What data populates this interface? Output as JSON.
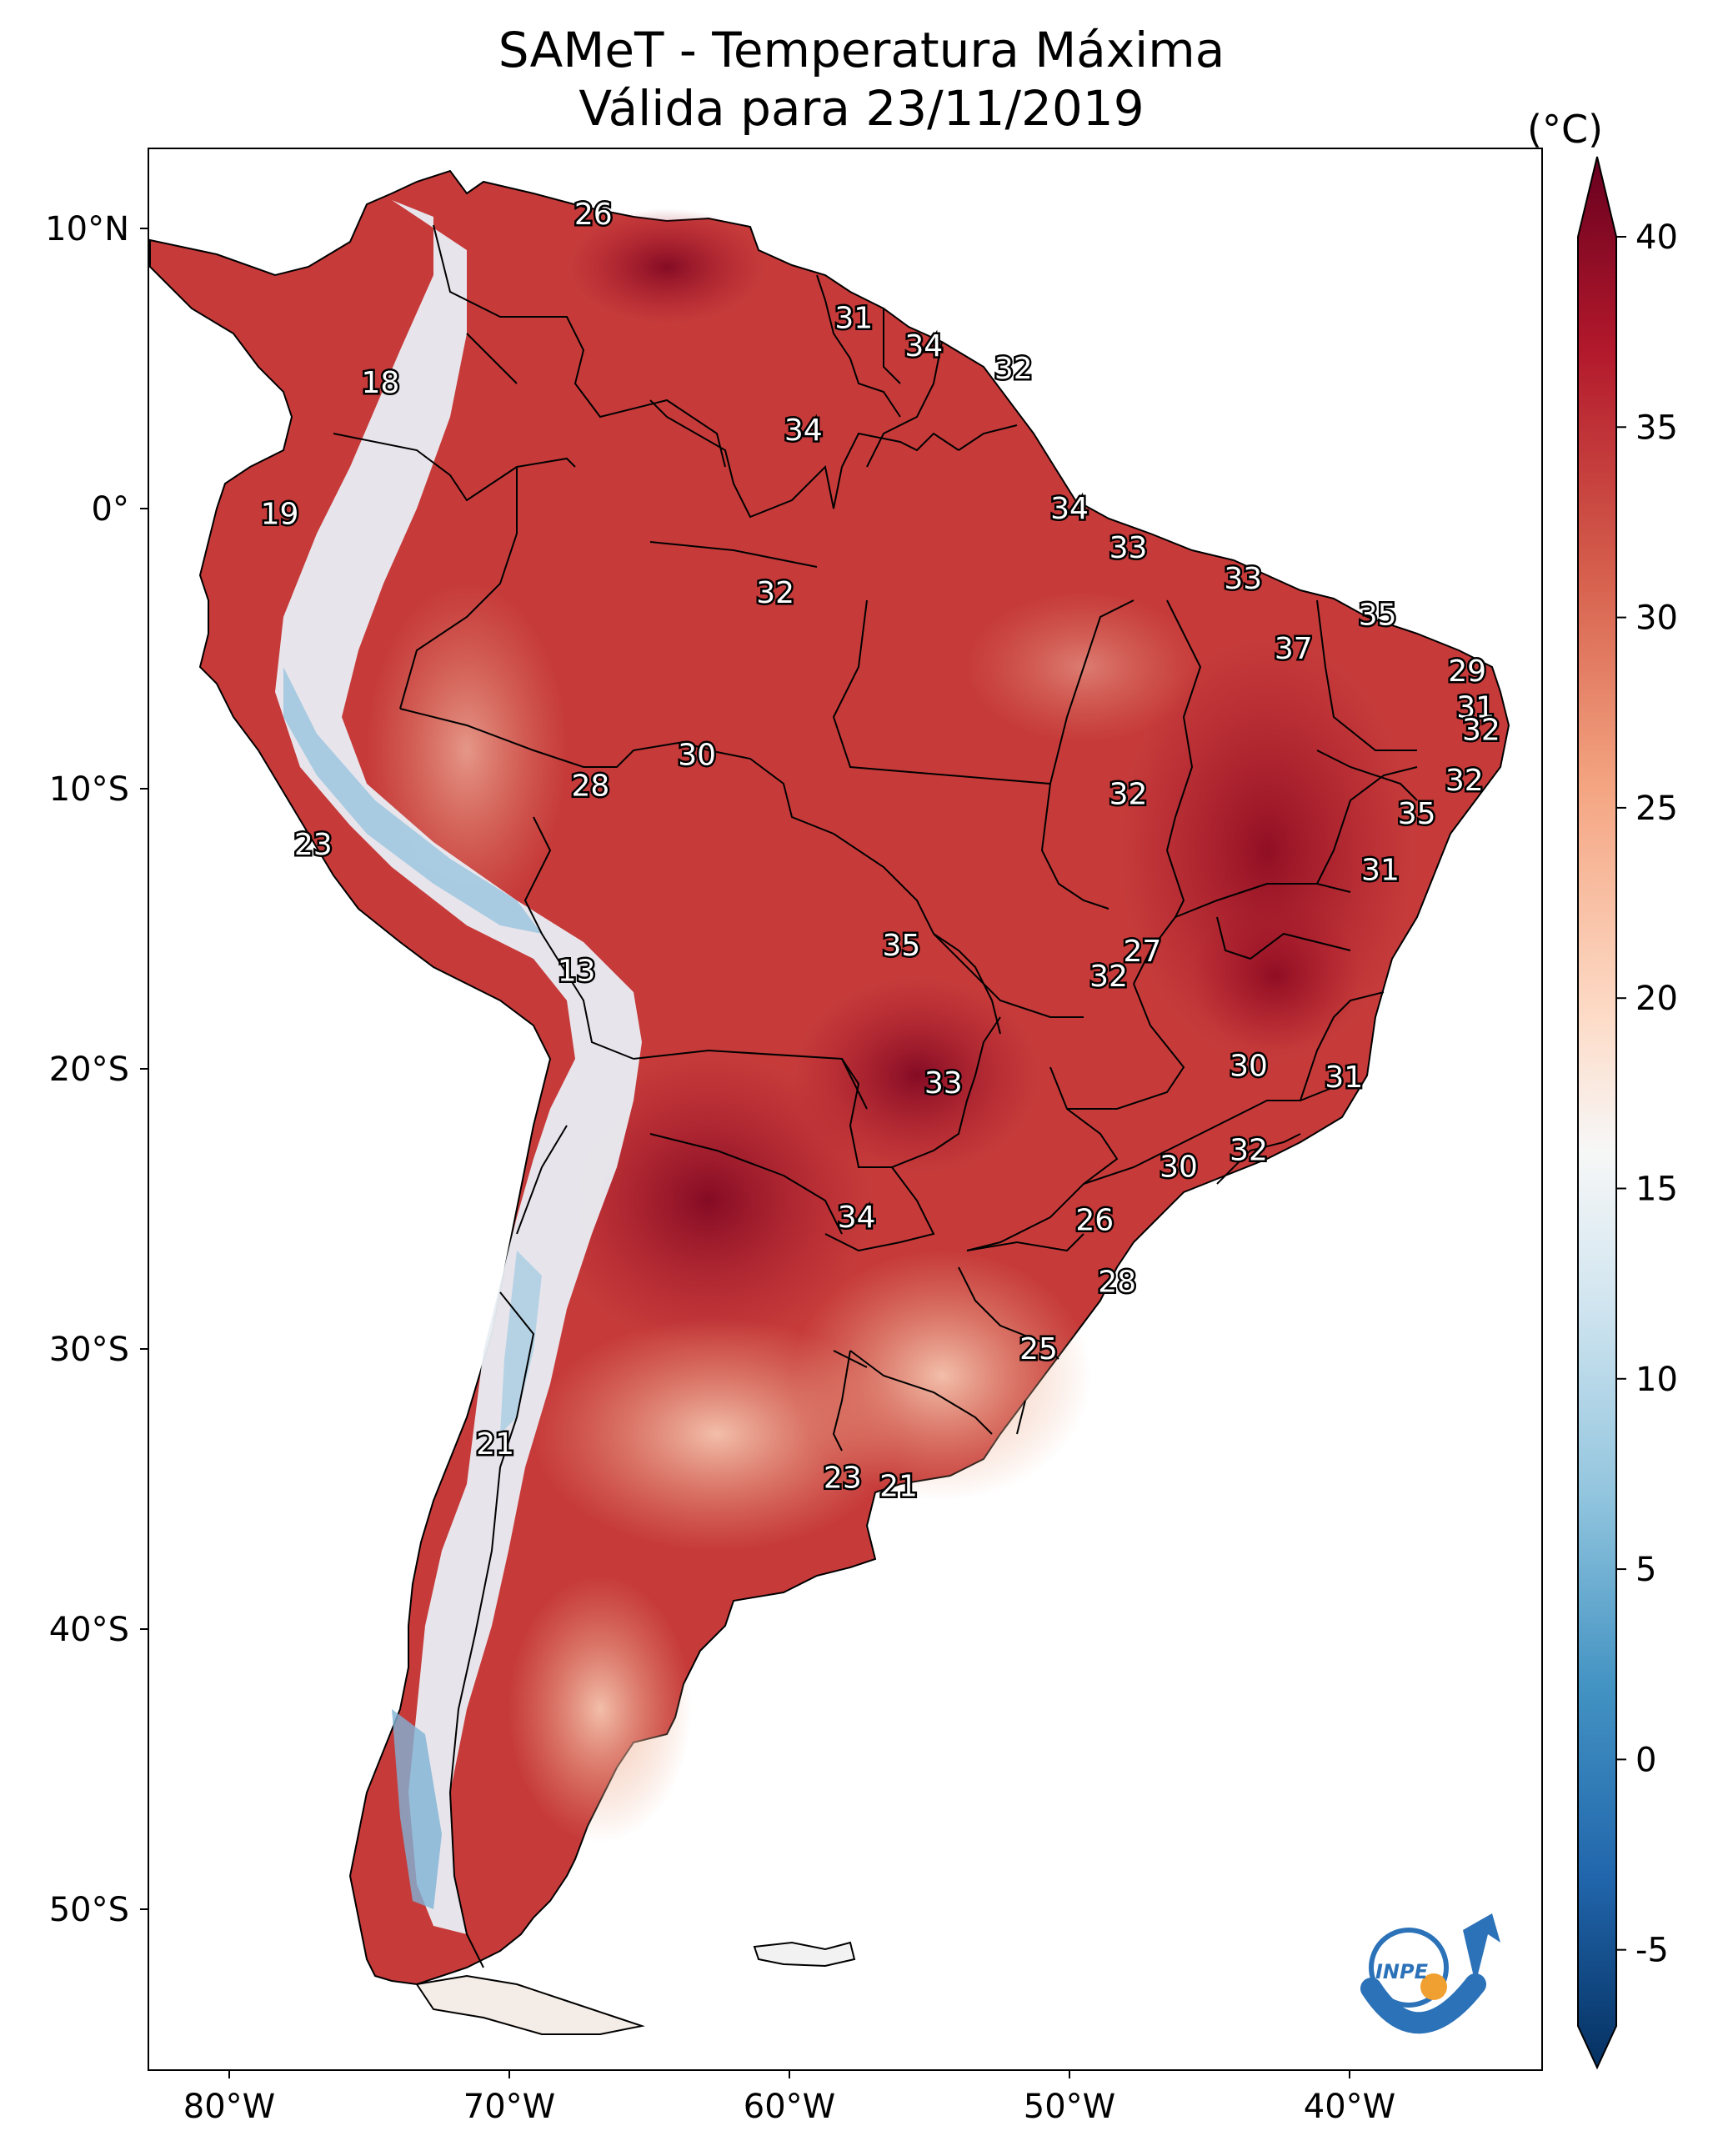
{
  "title": {
    "line1": "SAMeT - Temperatura Máxima",
    "line2": "Válida para 23/11/2019"
  },
  "axes": {
    "lon_labels": [
      "80°W",
      "70°W",
      "60°W",
      "50°W",
      "40°W"
    ],
    "lat_labels": [
      "10°N",
      "0°",
      "10°S",
      "20°S",
      "30°S",
      "40°S",
      "50°S"
    ]
  },
  "colorbar": {
    "unit": "(°C)",
    "ticks": [
      "40",
      "35",
      "30",
      "25",
      "20",
      "15",
      "10",
      "5",
      "0",
      "-5"
    ],
    "min": -7,
    "max": 40,
    "colors": {
      "dark_red": "#67001f",
      "red": "#b2182b",
      "orange_red": "#d6604d",
      "salmon": "#f4a582",
      "pale": "#fddbc7",
      "white": "#f7f7f7",
      "pale_blue": "#d1e5f0",
      "light_blue": "#92c5de",
      "blue": "#4393c3",
      "mid_blue": "#2166ac",
      "dark_blue": "#053061"
    }
  },
  "station_values": [
    {
      "value": "26",
      "lon": -67.0,
      "lat": 10.5
    },
    {
      "value": "18",
      "lon": -74.6,
      "lat": 4.5
    },
    {
      "value": "19",
      "lon": -78.2,
      "lat": -0.2
    },
    {
      "value": "31",
      "lon": -57.7,
      "lat": 6.8
    },
    {
      "value": "34",
      "lon": -55.2,
      "lat": 5.8
    },
    {
      "value": "32",
      "lon": -52.0,
      "lat": 5.0
    },
    {
      "value": "34",
      "lon": -59.5,
      "lat": 2.8
    },
    {
      "value": "34",
      "lon": -50.0,
      "lat": 0.0
    },
    {
      "value": "33",
      "lon": -47.9,
      "lat": -1.4
    },
    {
      "value": "33",
      "lon": -43.8,
      "lat": -2.5
    },
    {
      "value": "35",
      "lon": -39.0,
      "lat": -3.8
    },
    {
      "value": "37",
      "lon": -42.0,
      "lat": -5.0
    },
    {
      "value": "32",
      "lon": -60.5,
      "lat": -3.0
    },
    {
      "value": "29",
      "lon": -35.8,
      "lat": -5.8
    },
    {
      "value": "31",
      "lon": -35.5,
      "lat": -7.1
    },
    {
      "value": "32",
      "lon": -35.3,
      "lat": -7.9
    },
    {
      "value": "32",
      "lon": -35.9,
      "lat": -9.7
    },
    {
      "value": "35",
      "lon": -37.6,
      "lat": -10.9
    },
    {
      "value": "31",
      "lon": -38.9,
      "lat": -12.9
    },
    {
      "value": "30",
      "lon": -63.3,
      "lat": -8.8
    },
    {
      "value": "28",
      "lon": -67.1,
      "lat": -9.9
    },
    {
      "value": "32",
      "lon": -47.9,
      "lat": -10.2
    },
    {
      "value": "23",
      "lon": -77.0,
      "lat": -12.0
    },
    {
      "value": "13",
      "lon": -67.6,
      "lat": -16.5
    },
    {
      "value": "35",
      "lon": -56.0,
      "lat": -15.6
    },
    {
      "value": "27",
      "lon": -47.4,
      "lat": -15.8
    },
    {
      "value": "32",
      "lon": -48.6,
      "lat": -16.7
    },
    {
      "value": "33",
      "lon": -54.5,
      "lat": -20.5
    },
    {
      "value": "30",
      "lon": -43.6,
      "lat": -19.9
    },
    {
      "value": "31",
      "lon": -40.2,
      "lat": -20.3
    },
    {
      "value": "32",
      "lon": -43.6,
      "lat": -22.9
    },
    {
      "value": "30",
      "lon": -46.1,
      "lat": -23.5
    },
    {
      "value": "34",
      "lon": -57.6,
      "lat": -25.3
    },
    {
      "value": "26",
      "lon": -49.1,
      "lat": -25.4
    },
    {
      "value": "28",
      "lon": -48.3,
      "lat": -27.6
    },
    {
      "value": "25",
      "lon": -51.1,
      "lat": -30.0
    },
    {
      "value": "21",
      "lon": -70.5,
      "lat": -33.4
    },
    {
      "value": "23",
      "lon": -58.1,
      "lat": -34.6
    },
    {
      "value": "21",
      "lon": -56.1,
      "lat": -34.9
    }
  ],
  "logo": {
    "text": "INPE"
  }
}
